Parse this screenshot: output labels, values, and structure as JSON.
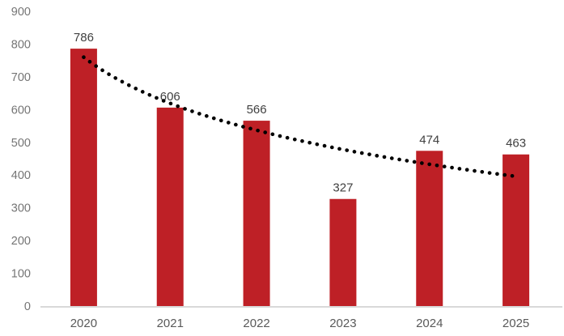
{
  "chart_data": {
    "type": "bar",
    "title": "",
    "xlabel": "",
    "ylabel": "",
    "categories": [
      "2020",
      "2021",
      "2022",
      "2023",
      "2024",
      "2025"
    ],
    "values": [
      786,
      606,
      566,
      327,
      474,
      463
    ],
    "bar_value_labels": [
      "786",
      "606",
      "566",
      "327",
      "474",
      "463"
    ],
    "ylim": [
      0,
      900
    ],
    "ytick_step": 100,
    "ytick_labels": [
      "0",
      "100",
      "200",
      "300",
      "400",
      "500",
      "600",
      "700",
      "800",
      "900"
    ],
    "grid": false,
    "legend_position": "none",
    "trendline": {
      "type": "logarithmic",
      "line_style": "dotted",
      "color": "#000000",
      "fitted_values_per_category": [
        760,
        619,
        537,
        478,
        433,
        396
      ]
    },
    "colors": {
      "bar_fill": "#BE2026",
      "bar_value_label": "#404040",
      "y_tick_label": "#757575",
      "x_tick_label": "#595959",
      "axis_line": "#D9D9D9",
      "background": "#FFFFFF"
    }
  }
}
